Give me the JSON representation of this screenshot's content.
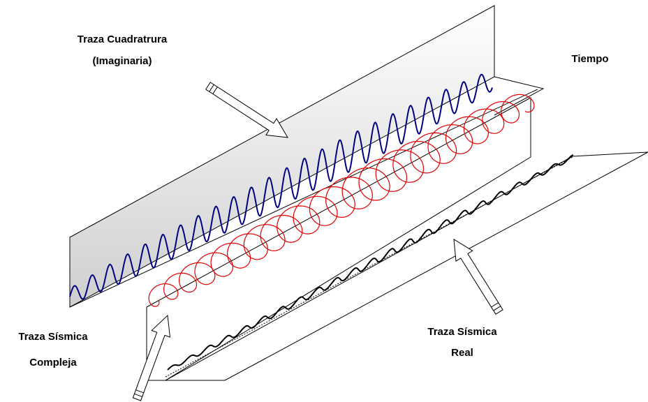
{
  "labels": {
    "quadrature": [
      "Traza Cuadratrura",
      "(Imaginaria)"
    ],
    "time": "Tiempo",
    "complex": [
      "Traza Sísmica",
      "Compleja"
    ],
    "real": [
      "Traza Sísmica",
      "Real"
    ]
  }
}
